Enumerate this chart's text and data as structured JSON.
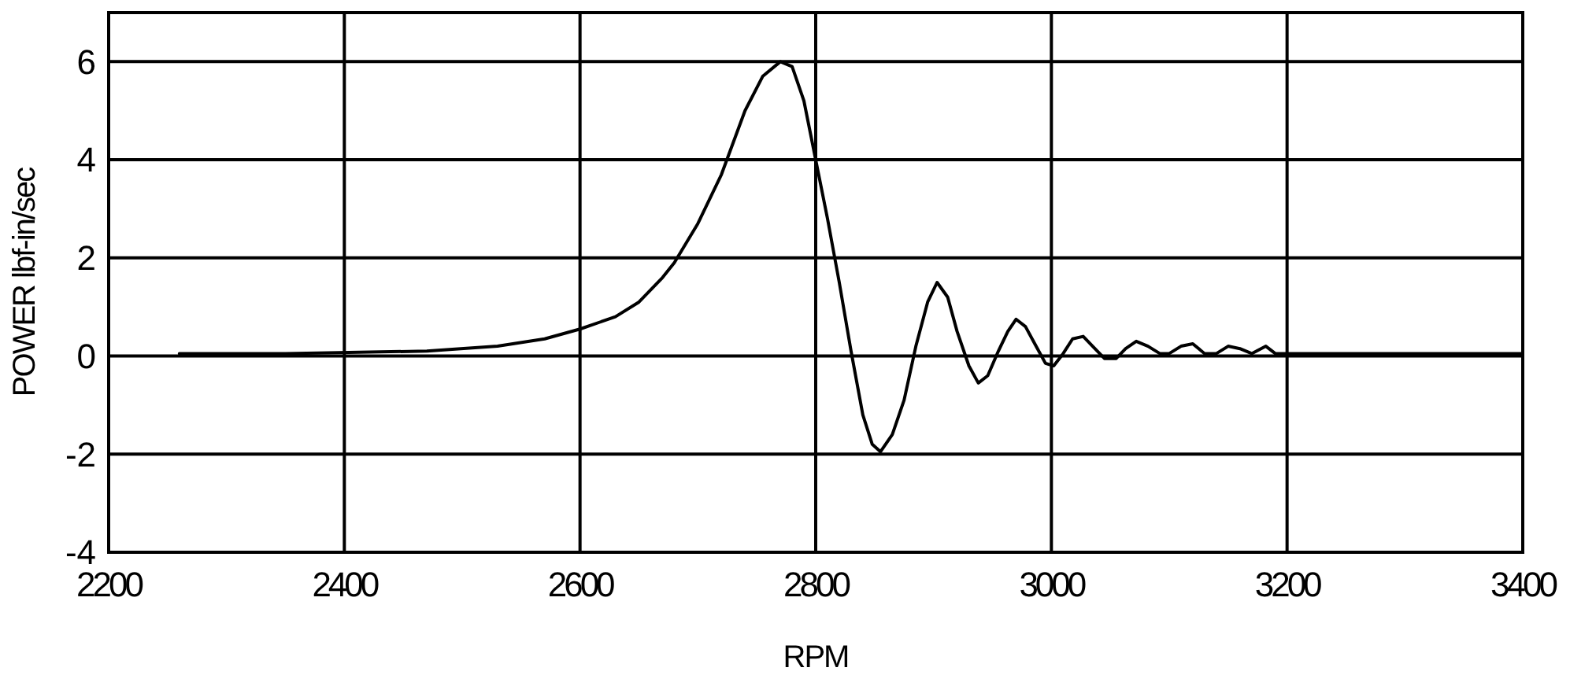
{
  "chart_data": {
    "type": "line",
    "xlabel": "RPM",
    "ylabel": "POWER lbf-in/sec",
    "xlim": [
      2200,
      3400
    ],
    "xticks": [
      2200,
      2400,
      2600,
      2800,
      3000,
      3200,
      3400
    ],
    "ylim": [
      -4,
      7
    ],
    "yticks": [
      -4,
      -2,
      0,
      2,
      4,
      6
    ],
    "grid": true,
    "color": "#000000",
    "x": [
      2260,
      2350,
      2470,
      2530,
      2570,
      2600,
      2630,
      2650,
      2670,
      2680,
      2700,
      2720,
      2740,
      2755,
      2770,
      2780,
      2790,
      2800,
      2810,
      2820,
      2830,
      2840,
      2848,
      2855,
      2865,
      2875,
      2885,
      2895,
      2903,
      2912,
      2920,
      2930,
      2938,
      2946,
      2955,
      2963,
      2970,
      2978,
      2987,
      2995,
      3002,
      3010,
      3018,
      3027,
      3035,
      3045,
      3055,
      3063,
      3072,
      3082,
      3092,
      3100,
      3110,
      3120,
      3130,
      3140,
      3150,
      3160,
      3170,
      3182,
      3190,
      3250,
      3400
    ],
    "values": [
      0.05,
      0.05,
      0.1,
      0.2,
      0.35,
      0.55,
      0.8,
      1.1,
      1.6,
      1.9,
      2.7,
      3.7,
      5.0,
      5.7,
      6.0,
      5.9,
      5.2,
      4.0,
      2.8,
      1.5,
      0.1,
      -1.2,
      -1.8,
      -1.95,
      -1.6,
      -0.9,
      0.2,
      1.1,
      1.5,
      1.2,
      0.5,
      -0.2,
      -0.55,
      -0.4,
      0.1,
      0.5,
      0.75,
      0.6,
      0.2,
      -0.15,
      -0.2,
      0.05,
      0.35,
      0.4,
      0.2,
      -0.05,
      -0.05,
      0.15,
      0.3,
      0.2,
      0.05,
      0.05,
      0.2,
      0.25,
      0.05,
      0.05,
      0.2,
      0.15,
      0.05,
      0.2,
      0.05,
      0.05,
      0.05
    ]
  }
}
